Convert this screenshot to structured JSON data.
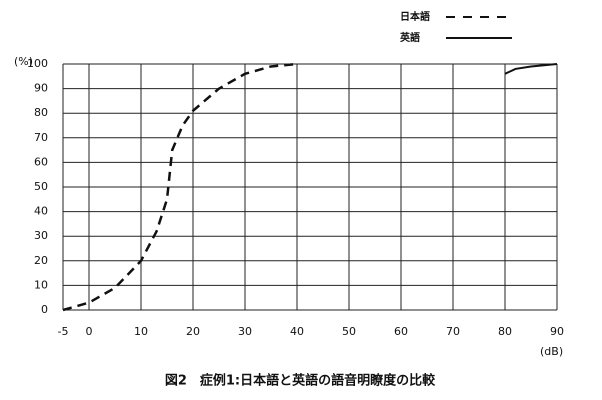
{
  "chart_data": {
    "type": "line",
    "title": "図2　症例1:日本語と英語の語音明瞭度の比較",
    "y_label": "(%)",
    "x_label": "(dB)",
    "xlim": [
      -5,
      90
    ],
    "xticks": [
      -5,
      0,
      10,
      20,
      30,
      40,
      50,
      60,
      70,
      80,
      90
    ],
    "ylim": [
      0,
      100
    ],
    "yticks": [
      0,
      10,
      20,
      30,
      40,
      50,
      60,
      70,
      80,
      90,
      100
    ],
    "grid": true,
    "series": [
      {
        "name": "日本語",
        "color": "#111111",
        "dash": true,
        "x": [
          -5,
          0,
          5,
          10,
          13,
          15,
          15.5,
          16,
          18,
          20,
          25,
          30,
          35,
          40
        ],
        "values": [
          0,
          3,
          9,
          20,
          32,
          45,
          55,
          65,
          75,
          81,
          90,
          96,
          99,
          100
        ]
      },
      {
        "name": "英語",
        "color": "#111111",
        "dash": false,
        "x": [
          80,
          82,
          85,
          90
        ],
        "values": [
          96,
          98,
          99,
          100
        ]
      }
    ]
  }
}
